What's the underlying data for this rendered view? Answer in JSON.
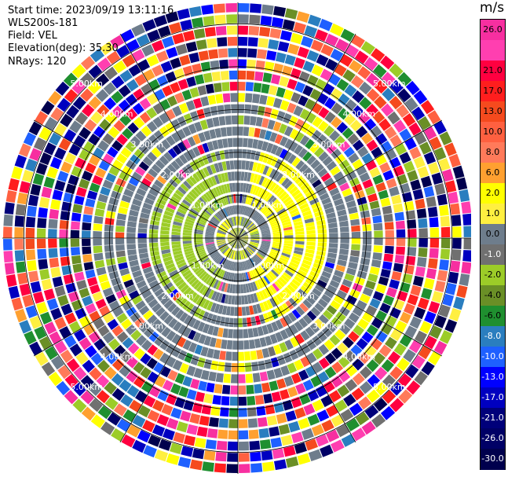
{
  "header": {
    "start_time": "Start time: 2023/09/19 13:11:16",
    "instrument": "WLS200s-181",
    "field": "Field: VEL",
    "elevation": "Elevation(deg): 35.30",
    "nrays": "NRays: 120"
  },
  "ppi": {
    "nrays": 120,
    "nrings": 21,
    "range_rings": [
      {
        "label": "1.00km",
        "km": 1.0
      },
      {
        "label": "2.00km",
        "km": 2.0
      },
      {
        "label": "3.00km",
        "km": 3.0
      },
      {
        "label": "4.00km",
        "km": 4.0
      },
      {
        "label": "5.00km",
        "km": 5.0
      }
    ],
    "max_range_km": 5.5,
    "line_color": "#000000"
  },
  "colorbar": {
    "unit": "m/s",
    "segments": [
      {
        "color": "#f72fa0",
        "label": "26.0"
      },
      {
        "color": "#ff3fb0",
        "label": ""
      },
      {
        "color": "#ff0040",
        "label": "21.0"
      },
      {
        "color": "#ff1e1e",
        "label": "17.0"
      },
      {
        "color": "#f54a1e",
        "label": "13.0"
      },
      {
        "color": "#ff6040",
        "label": "10.0"
      },
      {
        "color": "#ff7a5a",
        "label": "8.0"
      },
      {
        "color": "#ffa030",
        "label": "6.0"
      },
      {
        "color": "#ffff00",
        "label": "2.0"
      },
      {
        "color": "#ffef40",
        "label": "1.0"
      },
      {
        "color": "#6e7d8c",
        "label": "0.0"
      },
      {
        "color": "#707070",
        "label": "-1.0"
      },
      {
        "color": "#9ccc28",
        "label": "-2.0"
      },
      {
        "color": "#6a8f26",
        "label": "-4.0"
      },
      {
        "color": "#1f8f2f",
        "label": "-6.0"
      },
      {
        "color": "#2a7ebf",
        "label": "-8.0"
      },
      {
        "color": "#1e60ff",
        "label": "-10.0"
      },
      {
        "color": "#0000ff",
        "label": "-13.0"
      },
      {
        "color": "#0000c0",
        "label": "-17.0"
      },
      {
        "color": "#00007a",
        "label": "-21.0"
      },
      {
        "color": "#000066",
        "label": "-26.0"
      },
      {
        "color": "#00004d",
        "label": "-30.0"
      }
    ]
  }
}
